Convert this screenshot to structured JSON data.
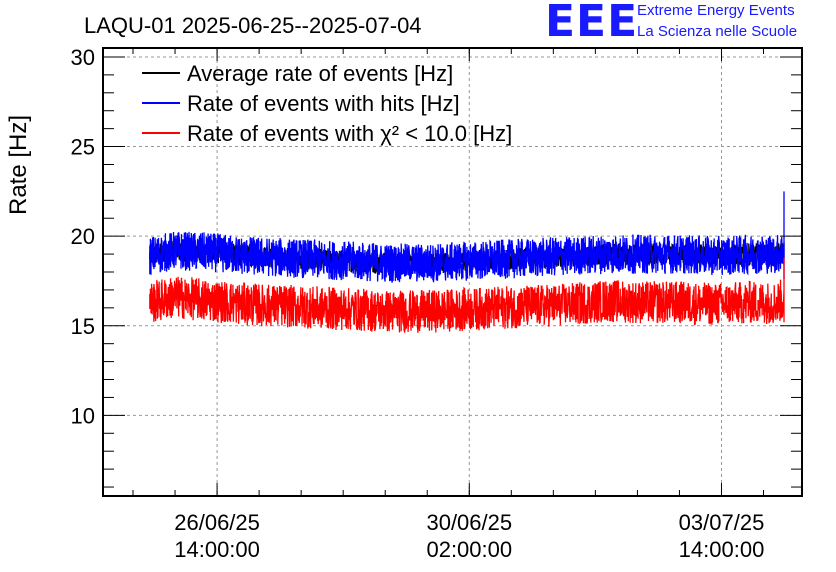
{
  "logo": {
    "mark": "EEE",
    "line1": "Extreme Energy Events",
    "line2": "La Scienza nelle Scuole",
    "color": "#1a1aff"
  },
  "chart_data": {
    "type": "line",
    "title": "LAQU-01 2025-06-25--2025-07-04",
    "xlabel": "",
    "ylabel": "Rate [Hz]",
    "ylim": [
      5.5,
      30.5
    ],
    "yticks": [
      10,
      15,
      20,
      25,
      30
    ],
    "grid": true,
    "legend_position": "top-left",
    "x_unit": "days since 2025-06-25 00:00",
    "xlim": [
      0.0,
      9.7
    ],
    "xticks": [
      {
        "x": 1.583,
        "date": "26/06/25",
        "time": "14:00:00"
      },
      {
        "x": 5.083,
        "date": "30/06/25",
        "time": "02:00:00"
      },
      {
        "x": 8.583,
        "date": "03/07/25",
        "time": "14:00:00"
      }
    ],
    "series": [
      {
        "name": "Average rate of events [Hz]",
        "color": "#000000",
        "x": [
          0.65,
          1.0,
          1.5,
          2.0,
          2.5,
          3.0,
          3.5,
          4.0,
          4.5,
          5.0,
          5.5,
          6.0,
          6.5,
          7.0,
          7.5,
          8.0,
          8.5,
          9.0,
          9.35,
          9.45
        ],
        "mean": [
          18.9,
          19.2,
          19.1,
          18.9,
          18.8,
          18.7,
          18.6,
          18.5,
          18.5,
          18.6,
          18.7,
          18.8,
          18.9,
          19.0,
          19.0,
          19.0,
          18.9,
          19.0,
          19.0,
          19.2
        ],
        "spread": 0.6
      },
      {
        "name": "Rate of events with hits [Hz]",
        "color": "#0000ff",
        "x": [
          0.65,
          1.0,
          1.5,
          2.0,
          2.5,
          3.0,
          3.5,
          4.0,
          4.5,
          5.0,
          5.5,
          6.0,
          6.5,
          7.0,
          7.5,
          8.0,
          8.5,
          9.0,
          9.35,
          9.45
        ],
        "mean": [
          18.9,
          19.2,
          19.1,
          18.9,
          18.8,
          18.7,
          18.6,
          18.5,
          18.5,
          18.6,
          18.7,
          18.8,
          18.9,
          19.0,
          19.0,
          19.0,
          18.9,
          19.0,
          19.0,
          19.2
        ],
        "spread": 1.1
      },
      {
        "name": "Rate of events with χ² < 10.0 [Hz]",
        "color": "#ff0000",
        "x": [
          0.65,
          1.0,
          1.5,
          2.0,
          2.5,
          3.0,
          3.5,
          4.0,
          4.5,
          5.0,
          5.5,
          6.0,
          6.5,
          7.0,
          7.5,
          8.0,
          8.5,
          9.0,
          9.35,
          9.45
        ],
        "mean": [
          16.3,
          16.6,
          16.4,
          16.2,
          16.1,
          16.0,
          15.9,
          15.8,
          15.8,
          15.9,
          16.0,
          16.1,
          16.2,
          16.4,
          16.3,
          16.3,
          16.2,
          16.3,
          16.3,
          16.5
        ],
        "spread": 1.2
      }
    ],
    "end_spike": {
      "x": 9.45,
      "blue_peak": 22.5,
      "red_peak": 18.8
    }
  }
}
